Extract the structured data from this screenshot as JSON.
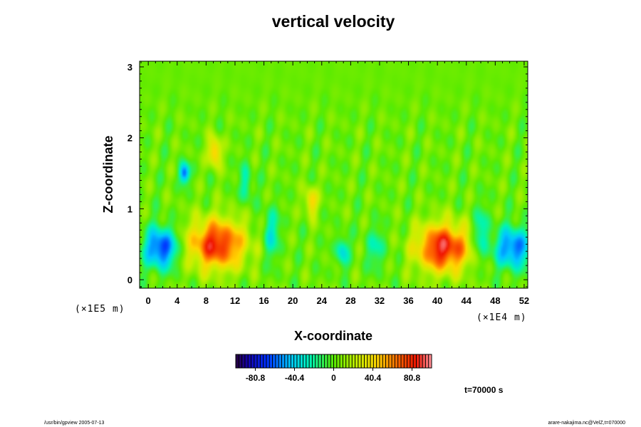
{
  "chart_data": {
    "type": "heatmap",
    "title": "vertical velocity",
    "xlabel": "X-coordinate",
    "ylabel": "Z-coordinate",
    "x_unit": "(×1E4 m)",
    "y_unit": "(×1E5 m)",
    "xlim": [
      -1.2,
      52.5
    ],
    "ylim": [
      -0.12,
      3.08
    ],
    "x_ticks": [
      "0",
      "4",
      "8",
      "12",
      "16",
      "20",
      "24",
      "28",
      "32",
      "36",
      "40",
      "44",
      "48",
      "52"
    ],
    "y_ticks": [
      "0",
      "1",
      "2",
      "3"
    ],
    "color_range": [
      -101,
      101
    ],
    "colorbar_ticks": [
      "-80.8",
      "-40.4",
      "0",
      "40.4",
      "80.8"
    ],
    "colorbar_tick_values": [
      -80.8,
      -40.4,
      0,
      40.4,
      80.8
    ],
    "features": [
      {
        "x": 9.5,
        "z": 0.5,
        "value": 80,
        "sx": 2.8,
        "sz": 0.25
      },
      {
        "x": 40.8,
        "z": 0.45,
        "value": 85,
        "sx": 2.6,
        "sz": 0.24
      },
      {
        "x": 1.8,
        "z": 0.45,
        "value": -75,
        "sx": 1.6,
        "sz": 0.2
      },
      {
        "x": 50.5,
        "z": 0.45,
        "value": -65,
        "sx": 1.8,
        "sz": 0.2
      },
      {
        "x": 5.0,
        "z": 1.5,
        "value": -65,
        "sx": 0.5,
        "sz": 0.1
      },
      {
        "x": 9.2,
        "z": 1.8,
        "value": 55,
        "sx": 0.6,
        "sz": 0.15
      },
      {
        "x": 26.8,
        "z": 0.4,
        "value": -40,
        "sx": 0.6,
        "sz": 0.15
      },
      {
        "x": 17.0,
        "z": 0.65,
        "value": -35,
        "sx": 0.8,
        "sz": 0.25
      },
      {
        "x": 22.5,
        "z": 1.1,
        "value": 45,
        "sx": 0.6,
        "sz": 0.15
      },
      {
        "x": 46.0,
        "z": 0.65,
        "value": -35,
        "sx": 0.8,
        "sz": 0.25
      },
      {
        "x": 31.5,
        "z": 0.45,
        "value": -25,
        "sx": 1.0,
        "sz": 0.2
      },
      {
        "x": 13.5,
        "z": 1.35,
        "value": -30,
        "sx": 0.6,
        "sz": 0.2
      }
    ],
    "time_label": "t=70000 s"
  },
  "footer": {
    "left": "/usr/bin/gpview 2005-07-13",
    "right": "arare-nakajima.nc@VelZ,t=070000"
  }
}
